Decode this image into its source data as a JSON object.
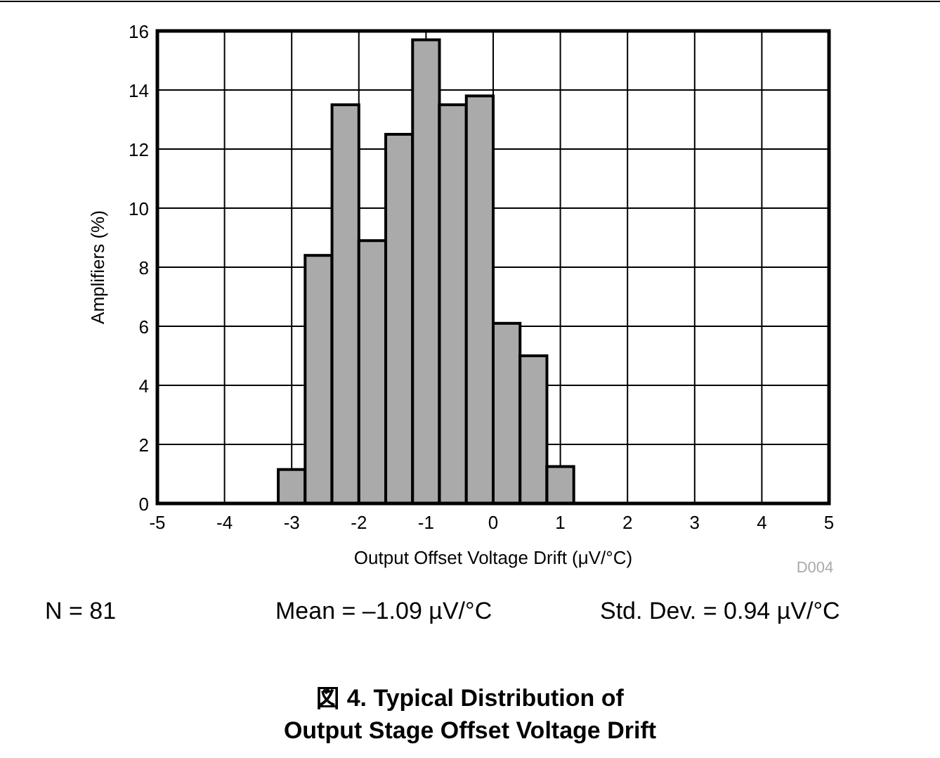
{
  "chart_data": {
    "type": "histogram",
    "title": "図 4. Typical Distribution of\nOutput Stage Offset Voltage Drift",
    "xlabel": "Output Offset Voltage Drift (μV/°C)",
    "ylabel": "Amplifiers (%)",
    "bins": [
      -3.2,
      -2.8,
      -2.4,
      -2.0,
      -1.6,
      -1.2,
      -0.8,
      -0.4,
      0,
      0.4,
      0.8,
      1.2
    ],
    "values": [
      1.15,
      8.4,
      13.5,
      8.9,
      12.5,
      15.7,
      13.5,
      13.8,
      6.1,
      5.0,
      1.25
    ],
    "color": "#aaaaaa",
    "xlim": [
      -5,
      5
    ],
    "ylim": [
      0,
      16
    ],
    "xticks": [
      -5,
      -4,
      -3,
      -2,
      -1,
      0,
      1,
      2,
      3,
      4,
      5
    ],
    "yticks": [
      0,
      2,
      4,
      6,
      8,
      10,
      12,
      14,
      16
    ],
    "grid": true,
    "annotations": [
      "D004",
      "N = 81",
      "Mean = –1.09 µV/°C",
      "Std. Dev. = 0.94 µV/°C"
    ]
  }
}
